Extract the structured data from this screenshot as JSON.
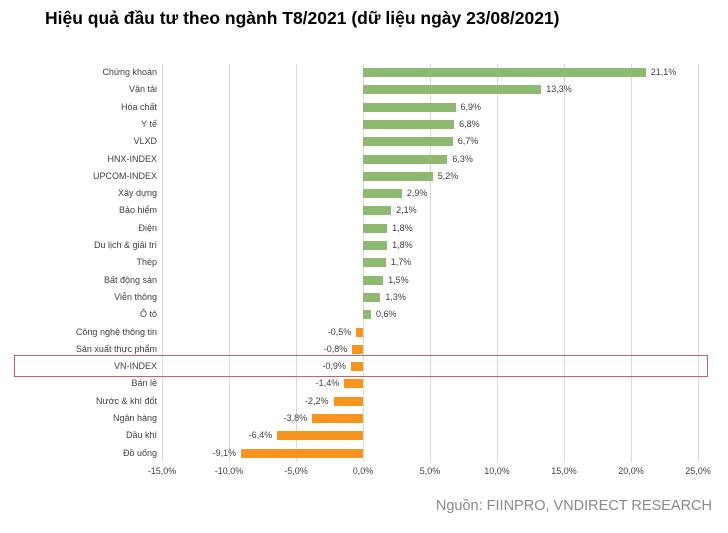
{
  "title": "Hiệu quả đầu tư theo ngành T8/2021 (dữ liệu ngày 23/08/2021)",
  "source": "Nguồn: FIINPRO, VNDIRECT RESEARCH",
  "colors": {
    "positive_bar": "#8db970",
    "negative_bar": "#f7941e",
    "highlight_border": "#d05c5c",
    "gridline": "#d9d9d9",
    "label_text": "#3f3f3f",
    "source_text": "#8a8a8a"
  },
  "chart_data": {
    "type": "bar",
    "orientation": "horizontal",
    "title": "Hiệu quả đầu tư theo ngành T8/2021 (dữ liệu ngày 23/08/2021)",
    "xlabel": "",
    "ylabel": "",
    "xlim": [
      -15,
      25
    ],
    "grid": true,
    "categories": [
      "Chứng khoán",
      "Vận tải",
      "Hóa chất",
      "Y tế",
      "VLXD",
      "HNX-INDEX",
      "UPCOM-INDEX",
      "Xây dựng",
      "Bảo hiểm",
      "Điện",
      "Du lịch & giải trí",
      "Thép",
      "Bất động sản",
      "Viễn thông",
      "Ô tô",
      "Công nghệ thông tin",
      "Sản xuất thực phẩm",
      "VN-INDEX",
      "Bán lẻ",
      "Nước & khí đốt",
      "Ngân hàng",
      "Dầu khí",
      "Đồ uống"
    ],
    "values": [
      21.1,
      13.3,
      6.9,
      6.8,
      6.7,
      6.3,
      5.2,
      2.9,
      2.1,
      1.8,
      1.8,
      1.7,
      1.5,
      1.3,
      0.6,
      -0.5,
      -0.8,
      -0.9,
      -1.4,
      -2.2,
      -3.8,
      -6.4,
      -9.1
    ],
    "value_labels": [
      "21,1%",
      "13,3%",
      "6,9%",
      "6,8%",
      "6,7%",
      "6,3%",
      "5,2%",
      "2,9%",
      "2,1%",
      "1,8%",
      "1,8%",
      "1,7%",
      "1,5%",
      "1,3%",
      "0,6%",
      "-0,5%",
      "-0,8%",
      "-0,9%",
      "-1,4%",
      "-2,2%",
      "-3,8%",
      "-6,4%",
      "-9,1%"
    ],
    "x_ticks": [
      -15,
      -10,
      -5,
      0,
      5,
      10,
      15,
      20,
      25
    ],
    "x_tick_labels": [
      "-15,0%",
      "-10,0%",
      "-5,0%",
      "0,0%",
      "5,0%",
      "10,0%",
      "15,0%",
      "20,0%",
      "25,0%"
    ],
    "highlighted_category": "VN-INDEX"
  }
}
